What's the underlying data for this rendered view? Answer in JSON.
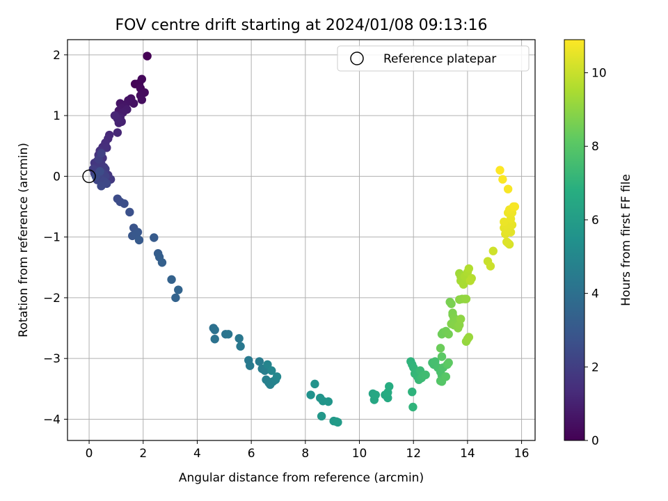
{
  "chart_data": {
    "type": "scatter",
    "title": "FOV centre drift starting at 2024/01/08 09:13:16",
    "xlabel": "Angular distance from reference (arcmin)",
    "ylabel": "Rotation from reference (arcmin)",
    "xlim": [
      -0.8,
      16.5
    ],
    "ylim": [
      -4.35,
      2.25
    ],
    "xticks": [
      0,
      2,
      4,
      6,
      8,
      10,
      12,
      14,
      16
    ],
    "yticks": [
      -4,
      -3,
      -2,
      -1,
      0,
      1,
      2
    ],
    "grid": true,
    "legend": {
      "position": "top-right",
      "entries": [
        "Reference platepar"
      ]
    },
    "reference_point": {
      "x": 0,
      "y": 0
    },
    "colorbar": {
      "label": "Hours from first FF file",
      "range": [
        0,
        10.9
      ],
      "ticks": [
        0,
        2,
        4,
        6,
        8,
        10
      ],
      "colormap": "viridis"
    },
    "series": [
      {
        "x": [
          2.15,
          1.7,
          1.85,
          1.95,
          1.9,
          2.05,
          1.9,
          1.95,
          1.55,
          1.65,
          1.45,
          1.35,
          1.3,
          1.2,
          1.1,
          1.4,
          1.25,
          1.05,
          1.15,
          1.2,
          1.1,
          1.05,
          0.95,
          1.25,
          1.15,
          1.05
        ],
        "y": [
          1.98,
          1.52,
          1.53,
          1.6,
          1.45,
          1.38,
          1.33,
          1.26,
          1.28,
          1.2,
          1.25,
          1.18,
          1.15,
          1.12,
          1.08,
          1.1,
          1.05,
          1.0,
          0.97,
          0.9,
          0.88,
          0.95,
          1.0,
          1.1,
          1.2,
          0.72
        ],
        "hours": [
          0.0,
          0.1,
          0.15,
          0.2,
          0.25,
          0.3,
          0.35,
          0.4,
          0.45,
          0.5,
          0.55,
          0.6,
          0.65,
          0.7,
          0.75,
          0.8,
          0.85,
          0.9,
          0.95,
          1.0,
          1.05,
          1.1,
          1.15,
          0.55,
          0.6,
          1.2
        ]
      },
      {
        "x": [
          0.75,
          0.7,
          0.6,
          0.5,
          0.65,
          0.4,
          0.35,
          0.5,
          0.3,
          0.2,
          0.25,
          0.45,
          0.55,
          0.3,
          0.15,
          0.2,
          0.35,
          0.5,
          0.6,
          0.4,
          0.3,
          0.55,
          0.65,
          0.45,
          0.25,
          0.4,
          0.5,
          0.7,
          0.8,
          0.6,
          0.35,
          0.45
        ],
        "y": [
          0.68,
          0.62,
          0.55,
          0.48,
          0.47,
          0.42,
          0.35,
          0.3,
          0.25,
          0.22,
          0.15,
          0.2,
          0.15,
          0.1,
          0.12,
          0.05,
          0.02,
          0.05,
          0.0,
          -0.03,
          -0.06,
          -0.08,
          -0.12,
          -0.16,
          0.0,
          0.08,
          -0.02,
          0.02,
          -0.05,
          0.12,
          0.28,
          0.38
        ],
        "hours": [
          1.25,
          1.3,
          1.35,
          1.4,
          1.45,
          1.5,
          1.55,
          1.6,
          1.65,
          1.7,
          1.75,
          1.8,
          1.85,
          1.9,
          1.95,
          2.0,
          2.05,
          2.1,
          2.15,
          2.2,
          2.25,
          2.3,
          2.35,
          2.4,
          2.45,
          2.5,
          1.6,
          1.7,
          1.8,
          1.9,
          2.0,
          2.1
        ]
      },
      {
        "x": [
          1.05,
          1.15,
          1.3,
          1.5,
          1.65,
          1.8,
          1.6,
          1.75,
          1.85,
          2.4,
          2.55,
          2.6,
          2.7,
          3.05,
          3.2,
          3.3
        ],
        "y": [
          -0.37,
          -0.42,
          -0.45,
          -0.59,
          -0.85,
          -0.92,
          -0.98,
          -0.95,
          -1.05,
          -1.01,
          -1.27,
          -1.33,
          -1.42,
          -1.7,
          -2.0,
          -1.87
        ],
        "hours": [
          2.5,
          2.55,
          2.6,
          2.7,
          2.8,
          2.9,
          2.95,
          3.0,
          3.05,
          3.1,
          3.2,
          3.25,
          3.3,
          3.4,
          3.45,
          3.5
        ]
      },
      {
        "x": [
          4.6,
          4.65,
          4.65,
          5.05,
          5.15,
          5.55,
          5.6,
          5.9,
          5.95,
          6.3,
          6.4,
          6.5,
          6.55,
          6.65,
          6.7,
          6.8,
          6.9,
          6.6,
          6.75,
          6.95
        ],
        "y": [
          -2.5,
          -2.53,
          -2.68,
          -2.6,
          -2.6,
          -2.67,
          -2.8,
          -3.03,
          -3.12,
          -3.05,
          -3.17,
          -3.2,
          -3.35,
          -3.4,
          -3.43,
          -3.38,
          -3.35,
          -3.1,
          -3.2,
          -3.3
        ],
        "hours": [
          4.0,
          4.05,
          4.1,
          4.15,
          4.2,
          4.3,
          4.35,
          4.4,
          4.45,
          4.5,
          4.55,
          4.6,
          4.65,
          4.7,
          4.75,
          4.8,
          4.85,
          4.9,
          4.95,
          5.0
        ]
      },
      {
        "x": [
          8.2,
          8.35,
          8.55,
          8.65,
          8.85,
          8.6,
          9.05,
          9.15,
          9.2
        ],
        "y": [
          -3.6,
          -3.42,
          -3.65,
          -3.7,
          -3.71,
          -3.95,
          -4.03,
          -4.04,
          -4.05
        ],
        "hours": [
          5.5,
          5.55,
          5.6,
          5.65,
          5.7,
          5.75,
          5.8,
          5.85,
          5.9
        ]
      },
      {
        "x": [
          10.5,
          10.55,
          10.6,
          10.95,
          11.05,
          11.05,
          11.1
        ],
        "y": [
          -3.58,
          -3.68,
          -3.6,
          -3.6,
          -3.65,
          -3.56,
          -3.46
        ],
        "hours": [
          6.4,
          6.45,
          6.5,
          6.55,
          6.6,
          6.65,
          6.7
        ]
      },
      {
        "x": [
          11.9,
          11.95,
          12.0,
          12.05,
          12.15,
          12.2,
          12.25,
          12.3,
          12.35,
          12.45,
          12.7,
          12.75,
          12.8,
          12.9,
          13.0,
          13.05,
          13.1,
          13.15,
          13.0,
          13.05,
          13.2,
          13.25,
          13.05,
          13.3,
          11.95,
          11.98
        ],
        "y": [
          -3.05,
          -3.1,
          -3.15,
          -3.25,
          -3.3,
          -3.35,
          -3.2,
          -3.32,
          -3.28,
          -3.27,
          -3.07,
          -3.1,
          -3.05,
          -3.15,
          -3.22,
          -3.28,
          -3.15,
          -3.3,
          -3.37,
          -3.38,
          -3.3,
          -3.1,
          -2.97,
          -3.07,
          -3.55,
          -3.8
        ],
        "hours": [
          7.0,
          7.05,
          7.1,
          7.15,
          7.2,
          7.25,
          7.3,
          7.35,
          7.4,
          7.45,
          7.5,
          7.55,
          7.6,
          7.65,
          7.7,
          7.75,
          7.8,
          7.85,
          7.9,
          7.95,
          8.0,
          8.05,
          8.1,
          8.15,
          7.0,
          7.05
        ]
      },
      {
        "x": [
          13.0,
          13.1,
          13.2,
          13.3,
          13.35,
          13.4,
          13.45,
          13.5,
          13.55,
          13.6,
          13.65,
          13.7,
          13.75,
          13.45,
          13.5,
          13.55,
          13.6,
          13.65,
          13.7,
          13.8,
          13.9,
          13.95,
          13.05,
          13.4,
          13.5
        ],
        "y": [
          -2.83,
          -2.57,
          -2.55,
          -2.6,
          -2.07,
          -2.1,
          -2.25,
          -2.35,
          -2.4,
          -2.45,
          -2.5,
          -2.45,
          -2.35,
          -2.28,
          -2.33,
          -2.38,
          -2.43,
          -2.47,
          -2.03,
          -2.02,
          -2.02,
          -2.02,
          -2.6,
          -2.43,
          -2.45
        ],
        "hours": [
          8.4,
          8.45,
          8.5,
          8.55,
          8.6,
          8.65,
          8.7,
          8.75,
          8.8,
          8.85,
          8.9,
          8.95,
          9.0,
          8.7,
          8.75,
          8.8,
          8.85,
          8.9,
          8.95,
          9.0,
          9.05,
          9.1,
          8.45,
          8.8,
          8.85
        ]
      },
      {
        "x": [
          13.95,
          14.0,
          14.05,
          13.7,
          13.75,
          13.8,
          13.85,
          13.9,
          14.0,
          14.05,
          14.15,
          14.1,
          13.75,
          14.75,
          14.85,
          14.95
        ],
        "y": [
          -2.72,
          -2.68,
          -2.65,
          -1.6,
          -1.65,
          -1.7,
          -1.78,
          -1.65,
          -1.58,
          -1.52,
          -1.68,
          -1.72,
          -1.72,
          -1.4,
          -1.48,
          -1.23
        ],
        "hours": [
          9.1,
          9.15,
          9.2,
          9.3,
          9.35,
          9.4,
          9.45,
          9.5,
          9.55,
          9.6,
          9.65,
          9.7,
          9.4,
          10.0,
          10.05,
          10.1
        ]
      },
      {
        "x": [
          15.2,
          15.3,
          15.5,
          15.35,
          15.4,
          15.45,
          15.5,
          15.55,
          15.6,
          15.65,
          15.7,
          15.75,
          15.5,
          15.55,
          15.45,
          15.6,
          15.35,
          15.4,
          15.65
        ],
        "y": [
          0.1,
          -0.05,
          -0.21,
          -0.75,
          -0.8,
          -0.9,
          -0.6,
          -0.55,
          -0.7,
          -0.8,
          -0.5,
          -0.5,
          -1.1,
          -1.12,
          -1.08,
          -0.92,
          -0.85,
          -0.95,
          -0.6
        ],
        "hours": [
          10.9,
          10.85,
          10.8,
          10.6,
          10.55,
          10.5,
          10.65,
          10.7,
          10.6,
          10.55,
          10.75,
          10.8,
          10.3,
          10.25,
          10.35,
          10.45,
          10.5,
          10.45,
          10.65
        ]
      }
    ]
  }
}
